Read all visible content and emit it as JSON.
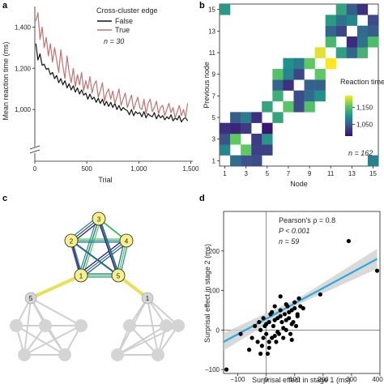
{
  "panels": {
    "a": "a",
    "b": "b",
    "c": "c",
    "d": "d"
  },
  "chart_data": [
    {
      "type": "line",
      "panel": "a",
      "title": "",
      "xlabel": "Trial",
      "ylabel": "Mean reaction time (ms)",
      "xlim": [
        0,
        1520
      ],
      "ylim": [
        820,
        1500
      ],
      "y_axis_break": true,
      "xticks": [
        0,
        500,
        1000,
        1500
      ],
      "xtick_labels": [
        "0",
        "500",
        "1,000",
        "1,500"
      ],
      "yticks": [
        1000,
        1200,
        1400
      ],
      "ytick_labels": [
        "1,000",
        "1,200",
        "1,400"
      ],
      "legend_title": "Cross-cluster edge",
      "legend_location": "top-right",
      "annotation": "n = 30",
      "series": [
        {
          "name": "False",
          "color": "#111111",
          "x": [
            10,
            30,
            50,
            70,
            90,
            110,
            130,
            150,
            170,
            190,
            210,
            230,
            250,
            270,
            290,
            310,
            330,
            350,
            370,
            390,
            410,
            430,
            450,
            470,
            490,
            510,
            530,
            550,
            570,
            590,
            610,
            630,
            650,
            670,
            690,
            710,
            730,
            750,
            770,
            790,
            810,
            830,
            850,
            870,
            890,
            910,
            930,
            950,
            970,
            990,
            1010,
            1030,
            1050,
            1070,
            1090,
            1110,
            1130,
            1150,
            1170,
            1190,
            1210,
            1230,
            1250,
            1270,
            1290,
            1310,
            1330,
            1350,
            1370,
            1390,
            1410,
            1430,
            1450,
            1470
          ],
          "values": [
            1320,
            1240,
            1270,
            1215,
            1220,
            1195,
            1200,
            1170,
            1180,
            1150,
            1165,
            1130,
            1150,
            1120,
            1140,
            1105,
            1125,
            1095,
            1115,
            1085,
            1105,
            1075,
            1095,
            1070,
            1080,
            1050,
            1075,
            1050,
            1060,
            1035,
            1055,
            1030,
            1050,
            1020,
            1040,
            1015,
            1035,
            1010,
            1030,
            1000,
            1020,
            995,
            1010,
            1000,
            995,
            975,
            1000,
            970,
            990,
            980,
            985,
            965,
            990,
            960,
            980,
            970,
            965,
            985,
            955,
            975,
            960,
            970,
            950,
            965,
            955,
            975,
            945,
            960,
            950,
            970,
            940,
            955,
            960,
            945
          ]
        },
        {
          "name": "True",
          "color": "#c0736f",
          "x": [
            10,
            30,
            50,
            70,
            90,
            110,
            130,
            150,
            170,
            190,
            210,
            230,
            250,
            270,
            290,
            310,
            330,
            350,
            370,
            390,
            410,
            430,
            450,
            470,
            490,
            510,
            530,
            550,
            570,
            590,
            610,
            630,
            650,
            670,
            690,
            710,
            730,
            750,
            770,
            790,
            810,
            830,
            850,
            870,
            890,
            910,
            930,
            950,
            970,
            990,
            1010,
            1030,
            1050,
            1070,
            1090,
            1110,
            1130,
            1150,
            1170,
            1190,
            1210,
            1230,
            1250,
            1270,
            1290,
            1310,
            1330,
            1350,
            1370,
            1390,
            1410,
            1430,
            1450,
            1470
          ],
          "values": [
            1430,
            1470,
            1340,
            1400,
            1300,
            1350,
            1260,
            1320,
            1230,
            1300,
            1240,
            1180,
            1290,
            1210,
            1150,
            1260,
            1180,
            1130,
            1200,
            1110,
            1170,
            1120,
            1180,
            1090,
            1140,
            1100,
            1160,
            1080,
            1120,
            1140,
            1060,
            1090,
            1130,
            1040,
            1080,
            1100,
            1050,
            1090,
            1030,
            1060,
            1100,
            1020,
            1050,
            1080,
            1010,
            1040,
            1070,
            1000,
            1030,
            1060,
            1010,
            1000,
            1050,
            980,
            1030,
            1050,
            990,
            1010,
            1040,
            980,
            1010,
            1020,
            970,
            1000,
            1030,
            985,
            1010,
            960,
            990,
            1020,
            970,
            1000,
            960,
            1030
          ]
        }
      ]
    },
    {
      "type": "heatmap",
      "panel": "b",
      "title": "",
      "xlabel": "Node",
      "ylabel": "Previous node",
      "xtick_labels": [
        "1",
        "3",
        "5",
        "7",
        "9",
        "11",
        "13",
        "15"
      ],
      "ytick_labels": [
        "1",
        "3",
        "5",
        "7",
        "9",
        "11",
        "13",
        "15"
      ],
      "n_nodes": 15,
      "colorbar": {
        "title": "Reaction time (ms)",
        "tick_labels": [
          "1,150",
          "1,050"
        ],
        "ticks": [
          1150,
          1050
        ],
        "min": 980,
        "max": 1220,
        "location": "right"
      },
      "annotation": "n = 162",
      "edges": [
        [
          1,
          2
        ],
        [
          1,
          3
        ],
        [
          1,
          4
        ],
        [
          1,
          15
        ],
        [
          2,
          3
        ],
        [
          2,
          4
        ],
        [
          2,
          5
        ],
        [
          3,
          4
        ],
        [
          3,
          5
        ],
        [
          4,
          5
        ],
        [
          5,
          6
        ],
        [
          6,
          7
        ],
        [
          6,
          8
        ],
        [
          6,
          9
        ],
        [
          7,
          8
        ],
        [
          7,
          9
        ],
        [
          7,
          10
        ],
        [
          8,
          9
        ],
        [
          8,
          10
        ],
        [
          9,
          10
        ],
        [
          10,
          11
        ],
        [
          11,
          12
        ],
        [
          11,
          13
        ],
        [
          11,
          14
        ],
        [
          12,
          13
        ],
        [
          12,
          14
        ],
        [
          12,
          15
        ],
        [
          13,
          14
        ],
        [
          13,
          15
        ],
        [
          14,
          15
        ]
      ],
      "values": [
        1090,
        1040,
        1010,
        1110,
        1160,
        1000,
        1050,
        1020,
        1080,
        1010,
        1120,
        1130,
        1060,
        1150,
        1010,
        1090,
        1100,
        1030,
        1080,
        1160,
        1210,
        1140,
        1060,
        1110,
        1030,
        1070,
        1120,
        1090,
        1050,
        1010
      ]
    },
    {
      "type": "scatter",
      "panel": "d",
      "title": "",
      "xlabel": "Surprisal effect in stage 1 (ms)",
      "ylabel": "Surprisal effect in stage 2 (ms)",
      "xlim": [
        -150,
        400
      ],
      "ylim": [
        -110,
        300
      ],
      "xticks": [
        -100,
        0,
        100,
        200,
        300,
        400
      ],
      "xtick_labels": [
        "–100",
        "0",
        "100",
        "200",
        "300",
        "400"
      ],
      "yticks": [
        -100,
        0,
        100,
        200
      ],
      "ytick_labels": [
        "–100",
        "0",
        "100",
        "200"
      ],
      "annotation": [
        "Pearson's ρ = 0.8",
        "P < 0.001",
        "n = 59"
      ],
      "fit": {
        "color": "#29a9df",
        "x": [
          -150,
          390
        ],
        "y": [
          -30,
          180
        ]
      },
      "x": [
        -140,
        -90,
        -60,
        -50,
        -40,
        -30,
        -25,
        -20,
        -15,
        -10,
        -5,
        0,
        5,
        10,
        15,
        20,
        25,
        30,
        35,
        40,
        45,
        50,
        55,
        60,
        65,
        70,
        75,
        80,
        85,
        90,
        95,
        100,
        105,
        110,
        115,
        120,
        -20,
        -10,
        0,
        10,
        20,
        30,
        40,
        50,
        60,
        70,
        80,
        90,
        100,
        10,
        30,
        50,
        70,
        90,
        110,
        190,
        290,
        390,
        130
      ],
      "y": [
        -100,
        -10,
        -50,
        -20,
        10,
        -30,
        20,
        0,
        -40,
        30,
        10,
        -10,
        -60,
        20,
        40,
        -20,
        10,
        60,
        -30,
        30,
        -10,
        50,
        20,
        -20,
        40,
        0,
        60,
        30,
        -10,
        50,
        20,
        70,
        10,
        40,
        80,
        60,
        -60,
        -20,
        15,
        -30,
        45,
        25,
        -5,
        35,
        5,
        65,
        45,
        15,
        55,
        -45,
        -15,
        85,
        25,
        -25,
        35,
        90,
        225,
        150,
        55
      ]
    }
  ]
}
